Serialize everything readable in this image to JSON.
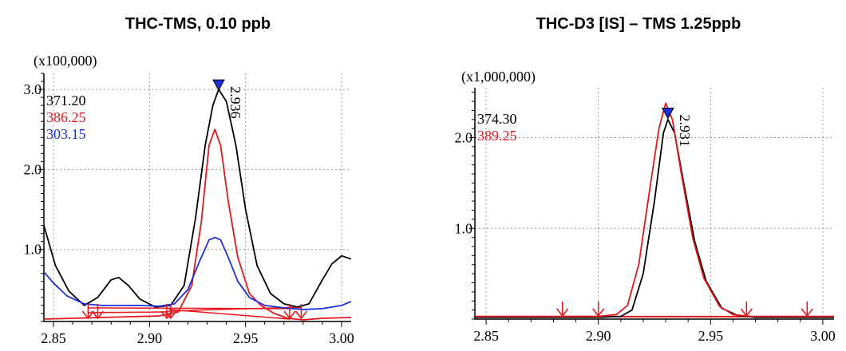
{
  "chart_data": [
    {
      "type": "line",
      "title": "THC-TMS, 0.10 ppb",
      "y_multiplier": "(x100,000)",
      "xlim": [
        2.845,
        3.005
      ],
      "ylim": [
        0.1,
        3.2
      ],
      "x_ticks": [
        2.85,
        2.9,
        2.95,
        3.0
      ],
      "x_tick_labels": [
        "2.85",
        "2.90",
        "2.95",
        "3.00"
      ],
      "y_ticks": [
        1.0,
        2.0,
        3.0
      ],
      "y_tick_labels": [
        "1.0",
        "2.0",
        "3.0"
      ],
      "grid": true,
      "peak": {
        "x": 2.936,
        "y": 3.0,
        "label": "2.936",
        "marker_color": "#1a2fe0"
      },
      "series": [
        {
          "name": "371.20",
          "color": "#000000",
          "x": [
            2.845,
            2.851,
            2.858,
            2.866,
            2.873,
            2.88,
            2.884,
            2.889,
            2.895,
            2.903,
            2.911,
            2.918,
            2.924,
            2.929,
            2.933,
            2.936,
            2.94,
            2.945,
            2.95,
            2.956,
            2.963,
            2.97,
            2.977,
            2.983,
            2.99,
            2.995,
            3.0,
            3.005
          ],
          "y": [
            1.3,
            0.8,
            0.48,
            0.3,
            0.4,
            0.62,
            0.65,
            0.55,
            0.38,
            0.28,
            0.3,
            0.55,
            1.4,
            2.3,
            2.8,
            3.0,
            2.85,
            2.3,
            1.5,
            0.8,
            0.45,
            0.32,
            0.28,
            0.32,
            0.62,
            0.82,
            0.92,
            0.88
          ]
        },
        {
          "name": "386.25",
          "color": "#e8141c",
          "x": [
            2.845,
            2.86,
            2.875,
            2.89,
            2.905,
            2.915,
            2.922,
            2.927,
            2.931,
            2.934,
            2.937,
            2.941,
            2.946,
            2.952,
            2.958,
            2.965,
            2.972,
            2.98,
            2.99,
            3.005
          ],
          "y": [
            0.13,
            0.14,
            0.15,
            0.16,
            0.17,
            0.22,
            0.55,
            1.35,
            2.3,
            2.5,
            2.3,
            1.6,
            0.9,
            0.45,
            0.3,
            0.2,
            0.14,
            0.12,
            0.14,
            0.15
          ]
        },
        {
          "name": "303.15",
          "color": "#1a2fe0",
          "x": [
            2.845,
            2.85,
            2.857,
            2.866,
            2.875,
            2.885,
            2.895,
            2.905,
            2.913,
            2.92,
            2.926,
            2.931,
            2.934,
            2.937,
            2.941,
            2.946,
            2.952,
            2.96,
            2.97,
            2.98,
            2.99,
            3.0,
            3.005
          ],
          "y": [
            0.72,
            0.58,
            0.42,
            0.32,
            0.3,
            0.3,
            0.3,
            0.29,
            0.32,
            0.5,
            0.85,
            1.12,
            1.15,
            1.12,
            0.9,
            0.6,
            0.4,
            0.3,
            0.27,
            0.25,
            0.26,
            0.3,
            0.35
          ]
        }
      ],
      "baselines": [
        {
          "x": [
            2.868,
            2.979
          ],
          "y": [
            0.27,
            0.26
          ]
        },
        {
          "x": [
            2.868,
            2.91
          ],
          "y": [
            0.21,
            0.22
          ]
        },
        {
          "x": [
            2.91,
            2.973
          ],
          "y": [
            0.25,
            0.13
          ]
        },
        {
          "x": [
            2.91,
            2.979
          ],
          "y": [
            0.23,
            0.28
          ]
        }
      ],
      "integration_markers_x": [
        2.868,
        2.873,
        2.909,
        2.911,
        2.973,
        2.979
      ]
    },
    {
      "type": "line",
      "title": "THC-D3 [IS] – TMS 1.25ppb",
      "y_multiplier": "(x1,000,000)",
      "xlim": [
        2.845,
        3.005
      ],
      "ylim": [
        0.0,
        2.55
      ],
      "x_ticks": [
        2.85,
        2.9,
        2.95,
        3.0
      ],
      "x_tick_labels": [
        "2.85",
        "2.90",
        "2.95",
        "3.00"
      ],
      "y_ticks": [
        1.0,
        2.0
      ],
      "y_tick_labels": [
        "1.0",
        "2.0"
      ],
      "grid": true,
      "peak": {
        "x": 2.931,
        "y": 2.22,
        "label": "2.931",
        "marker_color": "#1a2fe0"
      },
      "series": [
        {
          "name": "374.30",
          "color": "#000000",
          "x": [
            2.845,
            2.9,
            2.91,
            2.915,
            2.92,
            2.925,
            2.929,
            2.931,
            2.934,
            2.938,
            2.943,
            2.948,
            2.955,
            2.962,
            2.97,
            3.005
          ],
          "y": [
            0.02,
            0.02,
            0.03,
            0.1,
            0.5,
            1.3,
            2.05,
            2.2,
            2.05,
            1.5,
            0.85,
            0.42,
            0.12,
            0.04,
            0.02,
            0.02
          ]
        },
        {
          "name": "389.25",
          "color": "#e8141c",
          "x": [
            2.845,
            2.9,
            2.908,
            2.913,
            2.918,
            2.923,
            2.927,
            2.93,
            2.933,
            2.937,
            2.942,
            2.947,
            2.954,
            2.96,
            2.968,
            3.005
          ],
          "y": [
            0.03,
            0.03,
            0.05,
            0.15,
            0.6,
            1.45,
            2.1,
            2.38,
            2.2,
            1.6,
            0.9,
            0.45,
            0.14,
            0.05,
            0.03,
            0.03
          ]
        }
      ],
      "baselines": [
        {
          "x": [
            2.884,
            2.966
          ],
          "y": [
            0.03,
            0.03
          ]
        },
        {
          "x": [
            2.9,
            2.993
          ],
          "y": [
            0.025,
            0.025
          ]
        }
      ],
      "integration_markers_x": [
        2.884,
        2.9,
        2.966,
        2.993
      ]
    }
  ]
}
